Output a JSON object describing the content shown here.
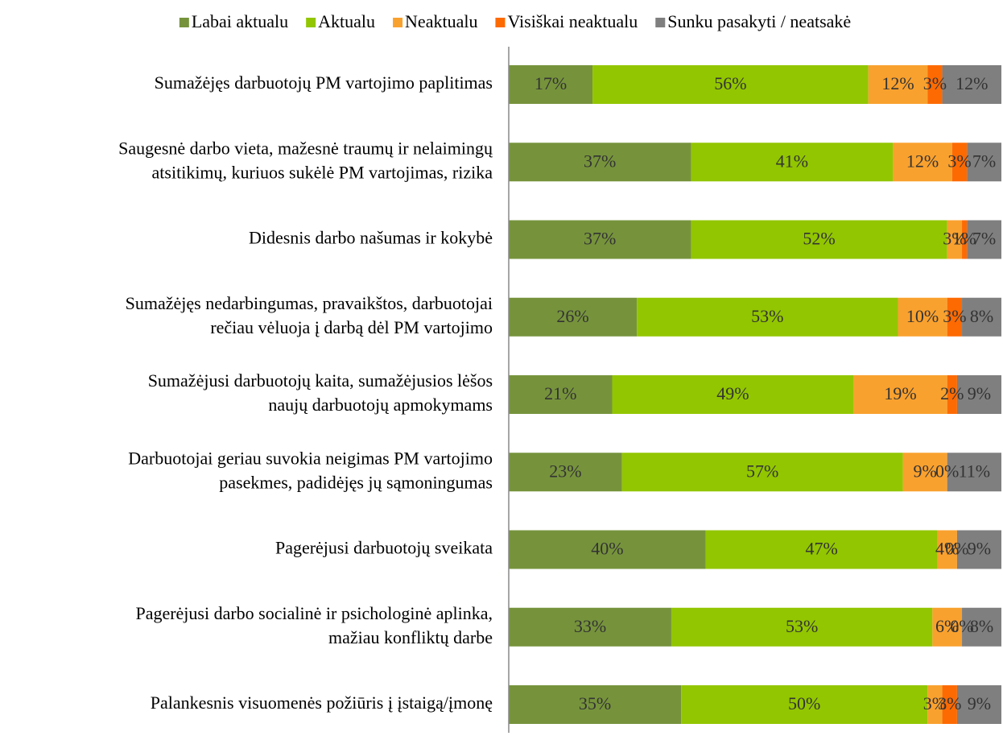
{
  "chart_data": {
    "type": "stacked-bar-horizontal",
    "categories": [
      [
        "Sumažėjęs darbuotojų PM vartojimo paplitimas"
      ],
      [
        "Saugesnė darbo vieta, mažesnė traumų ir nelaimingų",
        "atsitikimų, kuriuos sukėlė PM vartojimas, rizika"
      ],
      [
        "Didesnis darbo našumas ir kokybė"
      ],
      [
        "Sumažėjęs nedarbingumas, pravaikštos, darbuotojai",
        "rečiau vėluoja į darbą dėl PM vartojimo"
      ],
      [
        "Sumažėjusi darbuotojų kaita, sumažėjusios lėšos",
        "naujų darbuotojų apmokymams"
      ],
      [
        "Darbuotojai geriau suvokia neigimas PM vartojimo",
        "pasekmes, padidėjęs jų sąmoningumas"
      ],
      [
        "Pagerėjusi darbuotojų sveikata"
      ],
      [
        "Pagerėjusi darbo socialinė ir psichologinė aplinka,",
        "mažiau konfliktų darbe"
      ],
      [
        "Palankesnis visuomenės požiūris į įstaigą/įmonę"
      ]
    ],
    "series": [
      {
        "name": "Labai aktualu",
        "color": "#76933c",
        "values": [
          17,
          37,
          37,
          26,
          21,
          23,
          40,
          33,
          35
        ],
        "value_labels": [
          "17%",
          "37%",
          "37%",
          "26%",
          "21%",
          "23%",
          "40%",
          "33%",
          "35%"
        ]
      },
      {
        "name": "Aktualu",
        "color": "#92c600",
        "values": [
          56,
          41,
          52,
          53,
          49,
          57,
          47,
          53,
          50
        ],
        "value_labels": [
          "56%",
          "41%",
          "52%",
          "53%",
          "49%",
          "57%",
          "47%",
          "53%",
          "50%"
        ]
      },
      {
        "name": "Neaktualu",
        "color": "#f9a12e",
        "values": [
          12,
          12,
          3,
          10,
          19,
          9,
          4,
          6,
          3
        ],
        "value_labels": [
          "12%",
          "12%",
          "3%",
          "10%",
          "19%",
          "9%",
          "4%",
          "6%",
          "3%"
        ]
      },
      {
        "name": "Visiškai neaktualu",
        "color": "#fd6a02",
        "values": [
          3,
          3,
          1,
          3,
          2,
          0,
          0,
          0,
          3
        ],
        "value_labels": [
          "3%",
          "3%",
          "1%",
          "3%",
          "2%",
          "0%",
          "0%",
          "0%",
          "3%"
        ]
      },
      {
        "name": "Sunku pasakyti / neatsakė",
        "color": "#7f7f7f",
        "values": [
          12,
          7,
          7,
          8,
          9,
          11,
          9,
          8,
          9
        ],
        "value_labels": [
          "12%",
          "7%",
          "7%",
          "8%",
          "9%",
          "11%",
          "9%",
          "8%",
          "9%"
        ]
      }
    ],
    "xlim": [
      0,
      100
    ],
    "legend": "top"
  }
}
